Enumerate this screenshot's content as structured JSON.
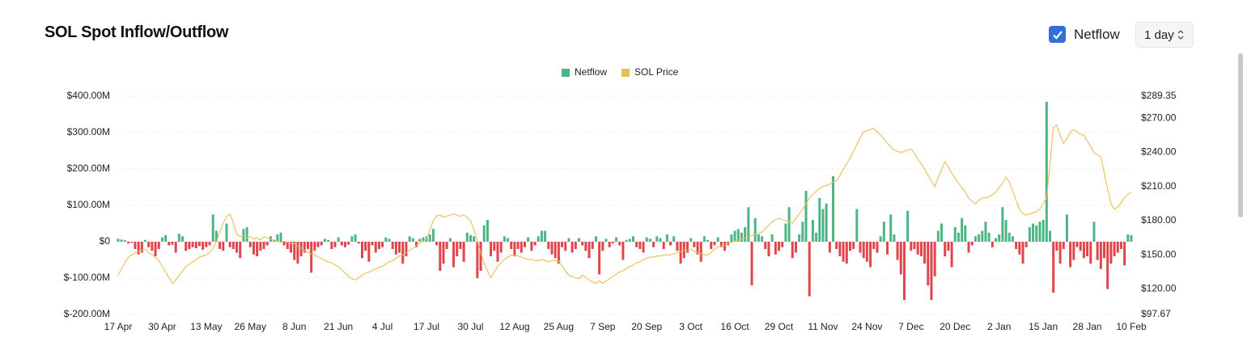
{
  "controls": {
    "netflow_toggle": "Netflow",
    "interval": "1 day"
  },
  "chart_data": {
    "type": "bar",
    "title": "SOL Spot Inflow/Outflow",
    "legend": "top",
    "grid": true,
    "categories": [
      "17 Apr",
      null,
      null,
      null,
      null,
      null,
      null,
      null,
      null,
      null,
      null,
      null,
      null,
      "30 Apr",
      null,
      null,
      null,
      null,
      null,
      null,
      null,
      null,
      null,
      null,
      null,
      null,
      "13 May",
      null,
      null,
      null,
      null,
      null,
      null,
      null,
      null,
      null,
      null,
      null,
      null,
      "26 May",
      null,
      null,
      null,
      null,
      null,
      null,
      null,
      null,
      null,
      null,
      null,
      null,
      "8 Jun",
      null,
      null,
      null,
      null,
      null,
      null,
      null,
      null,
      null,
      null,
      null,
      null,
      "21 Jun",
      null,
      null,
      null,
      null,
      null,
      null,
      null,
      null,
      null,
      null,
      null,
      null,
      "4 Jul",
      null,
      null,
      null,
      null,
      null,
      null,
      null,
      null,
      null,
      null,
      null,
      null,
      "17 Jul",
      null,
      null,
      null,
      null,
      null,
      null,
      null,
      null,
      null,
      null,
      null,
      null,
      "30 Jul",
      null,
      null,
      null,
      null,
      null,
      null,
      null,
      null,
      null,
      null,
      null,
      null,
      "12 Aug",
      null,
      null,
      null,
      null,
      null,
      null,
      null,
      null,
      null,
      null,
      null,
      null,
      "25 Aug",
      null,
      null,
      null,
      null,
      null,
      null,
      null,
      null,
      null,
      null,
      null,
      null,
      "7 Sep",
      null,
      null,
      null,
      null,
      null,
      null,
      null,
      null,
      null,
      null,
      null,
      null,
      "20 Sep",
      null,
      null,
      null,
      null,
      null,
      null,
      null,
      null,
      null,
      null,
      null,
      null,
      "3 Oct",
      null,
      null,
      null,
      null,
      null,
      null,
      null,
      null,
      null,
      null,
      null,
      null,
      "16 Oct",
      null,
      null,
      null,
      null,
      null,
      null,
      null,
      null,
      null,
      null,
      null,
      null,
      "29 Oct",
      null,
      null,
      null,
      null,
      null,
      null,
      null,
      null,
      null,
      null,
      null,
      null,
      "11 Nov",
      null,
      null,
      null,
      null,
      null,
      null,
      null,
      null,
      null,
      null,
      null,
      null,
      "24 Nov",
      null,
      null,
      null,
      null,
      null,
      null,
      null,
      null,
      null,
      null,
      null,
      null,
      "7 Dec",
      null,
      null,
      null,
      null,
      null,
      null,
      null,
      null,
      null,
      null,
      null,
      null,
      "20 Dec",
      null,
      null,
      null,
      null,
      null,
      null,
      null,
      null,
      null,
      null,
      null,
      null,
      "2 Jan",
      null,
      null,
      null,
      null,
      null,
      null,
      null,
      null,
      null,
      null,
      null,
      null,
      "15 Jan",
      null,
      null,
      null,
      null,
      null,
      null,
      null,
      null,
      null,
      null,
      null,
      null,
      "28 Jan",
      null,
      null,
      null,
      null,
      null,
      null,
      null,
      null,
      null,
      null,
      null,
      null,
      "10 Feb"
    ],
    "ylim": [
      -200,
      400
    ],
    "yticks": [
      {
        "value": -200,
        "label": "$-200.00M"
      },
      {
        "value": -100,
        "label": "$-100.00M"
      },
      {
        "value": 0,
        "label": "$0"
      },
      {
        "value": 100,
        "label": "$100.00M"
      },
      {
        "value": 200,
        "label": "$200.00M"
      },
      {
        "value": 300,
        "label": "$300.00M"
      },
      {
        "value": 400,
        "label": "$400.00M"
      }
    ],
    "y2lim": [
      97.67,
      289.35
    ],
    "y2ticks": [
      {
        "value": 97.67,
        "label": "$97.67"
      },
      {
        "value": 120,
        "label": "$120.00"
      },
      {
        "value": 150,
        "label": "$150.00"
      },
      {
        "value": 180,
        "label": "$180.00"
      },
      {
        "value": 210,
        "label": "$210.00"
      },
      {
        "value": 240,
        "label": "$240.00"
      },
      {
        "value": 270,
        "label": "$270.00"
      },
      {
        "value": 289.35,
        "label": "$289.35"
      }
    ],
    "series": [
      {
        "name": "Netflow",
        "type": "bar",
        "color": "#4db584",
        "negative_color": "#e0454b",
        "values": [
          8,
          6,
          4,
          -5,
          -3,
          -20,
          -35,
          -30,
          5,
          -15,
          -25,
          -40,
          -20,
          12,
          18,
          -10,
          -8,
          -30,
          22,
          15,
          -25,
          -20,
          -15,
          -18,
          -12,
          -22,
          -15,
          -10,
          75,
          30,
          -20,
          -25,
          50,
          -15,
          -20,
          -30,
          -45,
          35,
          40,
          -15,
          -35,
          -40,
          -25,
          -20,
          -10,
          15,
          5,
          20,
          25,
          -10,
          -20,
          -30,
          -50,
          -60,
          -40,
          -30,
          -20,
          -85,
          -25,
          -15,
          -10,
          8,
          5,
          -20,
          -15,
          12,
          -10,
          -15,
          -8,
          15,
          20,
          -5,
          -45,
          -25,
          -55,
          -10,
          -30,
          -20,
          -15,
          12,
          8,
          -20,
          -35,
          -30,
          -60,
          -40,
          15,
          10,
          -15,
          8,
          12,
          15,
          20,
          35,
          -10,
          -80,
          -60,
          -20,
          10,
          -70,
          -40,
          -20,
          -55,
          25,
          18,
          15,
          -100,
          -80,
          45,
          60,
          -40,
          -25,
          -55,
          -30,
          15,
          10,
          -20,
          -40,
          -20,
          -30,
          -15,
          12,
          -25,
          -10,
          15,
          30,
          30,
          -20,
          -35,
          -45,
          -60,
          -15,
          -25,
          10,
          -30,
          -20,
          10,
          -10,
          -25,
          -45,
          -20,
          15,
          -90,
          -25,
          8,
          -15,
          -5,
          12,
          -10,
          -50,
          5,
          8,
          15,
          -15,
          -20,
          -30,
          12,
          8,
          -15,
          15,
          10,
          -20,
          20,
          -10,
          15,
          -25,
          -60,
          -45,
          -30,
          10,
          -15,
          -35,
          -55,
          15,
          5,
          -20,
          -10,
          12,
          -15,
          -25,
          -10,
          20,
          30,
          35,
          25,
          40,
          95,
          -120,
          65,
          20,
          15,
          -20,
          -40,
          20,
          -35,
          -25,
          -15,
          50,
          95,
          -45,
          -30,
          20,
          55,
          140,
          -150,
          60,
          25,
          120,
          90,
          105,
          -30,
          180,
          -20,
          -40,
          -55,
          -60,
          -25,
          -20,
          90,
          -30,
          -45,
          -55,
          -70,
          -20,
          -30,
          15,
          55,
          -35,
          75,
          20,
          -50,
          -90,
          -160,
          85,
          -25,
          -20,
          -35,
          -40,
          -60,
          -120,
          -160,
          -95,
          30,
          50,
          -40,
          -25,
          -70,
          40,
          25,
          65,
          45,
          -30,
          -10,
          15,
          20,
          30,
          55,
          25,
          -15,
          10,
          20,
          95,
          60,
          25,
          15,
          -20,
          -35,
          -60,
          -15,
          40,
          50,
          45,
          55,
          60,
          385,
          30,
          -140,
          -25,
          -60,
          -20,
          75,
          -70,
          -50,
          -15,
          -25,
          -45,
          -40,
          -60,
          55,
          -50,
          -75,
          -45,
          -130,
          -60,
          -40,
          -30,
          -20,
          -65,
          20,
          18
        ]
      },
      {
        "name": "SOL Price",
        "type": "line",
        "axis": "y2",
        "color": "#e9bf55",
        "values": [
          132,
          138,
          143,
          148,
          150,
          152,
          153,
          154,
          155,
          152,
          150,
          148,
          145,
          140,
          135,
          130,
          125,
          128,
          132,
          136,
          140,
          142,
          144,
          146,
          148,
          149,
          150,
          152,
          156,
          162,
          170,
          178,
          184,
          186,
          178,
          168,
          166,
          167,
          165,
          166,
          164,
          165,
          163,
          166,
          165,
          164,
          163,
          162,
          161,
          162,
          161,
          160,
          160,
          158,
          156,
          154,
          152,
          151,
          150,
          148,
          147,
          145,
          144,
          143,
          141,
          140,
          137,
          134,
          131,
          129,
          128,
          130,
          132,
          134,
          135,
          136,
          138,
          139,
          140,
          142,
          144,
          145,
          147,
          149,
          150,
          152,
          154,
          156,
          158,
          160,
          162,
          164,
          172,
          180,
          184,
          185,
          183,
          184,
          185,
          186,
          185,
          184,
          185,
          183,
          180,
          172,
          162,
          152,
          143,
          136,
          130,
          135,
          140,
          143,
          146,
          148,
          150,
          150,
          149,
          148,
          147,
          146,
          146,
          145,
          145,
          146,
          145,
          144,
          145,
          145,
          145,
          140,
          136,
          132,
          131,
          130,
          129,
          132,
          130,
          128,
          126,
          125,
          127,
          125,
          127,
          129,
          131,
          133,
          135,
          136,
          138,
          140,
          141,
          143,
          144,
          146,
          147,
          148,
          148,
          149,
          149,
          150,
          150,
          150,
          151,
          152,
          153,
          154,
          154,
          155,
          153,
          152,
          151,
          150,
          150,
          152,
          155,
          157,
          158,
          159,
          160,
          161,
          162,
          163,
          164,
          165,
          166,
          167,
          168,
          169,
          170,
          173,
          176,
          179,
          181,
          182,
          181,
          180,
          179,
          178,
          182,
          186,
          190,
          195,
          200,
          203,
          206,
          208,
          210,
          211,
          212,
          214,
          215,
          220,
          225,
          230,
          235,
          241,
          247,
          253,
          258,
          259,
          260,
          261,
          258,
          255,
          252,
          248,
          245,
          242,
          241,
          240,
          241,
          242,
          243,
          239,
          234,
          230,
          225,
          220,
          215,
          210,
          218,
          225,
          232,
          227,
          222,
          217,
          213,
          209,
          205,
          200,
          197,
          195,
          198,
          200,
          200,
          201,
          203,
          205,
          209,
          213,
          218,
          214,
          206,
          198,
          190,
          186,
          185,
          186,
          187,
          188,
          190,
          195,
          200,
          230,
          262,
          264,
          255,
          248,
          252,
          258,
          260,
          258,
          256,
          255,
          250,
          245,
          240,
          238,
          236,
          222,
          208,
          195,
          190,
          192,
          196,
          200,
          203,
          205
        ]
      }
    ]
  }
}
